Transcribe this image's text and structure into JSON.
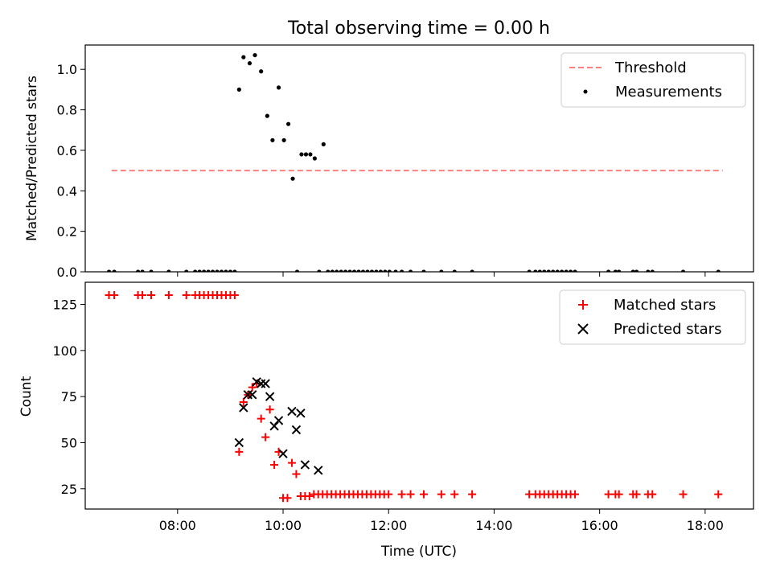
{
  "title": "Total observing time = 0.00 h",
  "colors": {
    "threshold": "#ff7f7f",
    "measurements": "#000000",
    "matched": "#ff0000",
    "predicted": "#000000"
  },
  "chart_data": [
    {
      "type": "scatter",
      "title": "Total observing time = 0.00 h",
      "xlabel": "",
      "ylabel": "Matched/Predicted stars",
      "xlim": [
        "06:15",
        "18:55"
      ],
      "ylim": [
        0,
        1.12
      ],
      "yticks": [
        0.0,
        0.2,
        0.4,
        0.6,
        0.8,
        1.0
      ],
      "ytick_labels": [
        "0.0",
        "0.2",
        "0.4",
        "0.6",
        "0.8",
        "1.0"
      ],
      "xticks": [
        "08:00",
        "10:00",
        "12:00",
        "14:00",
        "16:00",
        "18:00"
      ],
      "legend_position": "top-right",
      "legend": [
        "Threshold",
        "Measurements"
      ],
      "series": [
        {
          "name": "Threshold",
          "kind": "line",
          "x": [
            "06:45",
            "18:20"
          ],
          "y": [
            0.5,
            0.5
          ]
        },
        {
          "name": "Measurements",
          "kind": "points",
          "x": [
            "06:42",
            "06:48",
            "07:15",
            "07:20",
            "07:30",
            "07:50",
            "08:10",
            "08:20",
            "08:25",
            "08:30",
            "08:35",
            "08:40",
            "08:45",
            "08:50",
            "08:55",
            "09:00",
            "09:05",
            "09:10",
            "09:15",
            "09:22",
            "09:28",
            "09:35",
            "09:42",
            "09:48",
            "09:55",
            "10:01",
            "10:06",
            "10:11",
            "10:16",
            "10:21",
            "10:26",
            "10:31",
            "10:36",
            "10:41",
            "10:46",
            "10:51",
            "10:56",
            "11:01",
            "11:06",
            "11:11",
            "11:16",
            "11:21",
            "11:26",
            "11:31",
            "11:36",
            "11:41",
            "11:46",
            "11:51",
            "11:56",
            "12:01",
            "12:08",
            "12:15",
            "12:25",
            "12:40",
            "13:00",
            "13:15",
            "13:35",
            "14:40",
            "14:47",
            "14:52",
            "14:57",
            "15:02",
            "15:07",
            "15:12",
            "15:17",
            "15:22",
            "15:27",
            "15:32",
            "16:10",
            "16:18",
            "16:22",
            "16:38",
            "16:42",
            "16:55",
            "17:00",
            "17:35",
            "18:15"
          ],
          "y": [
            0,
            0,
            0,
            0,
            0,
            0,
            0,
            0,
            0,
            0,
            0,
            0,
            0,
            0,
            0,
            0,
            0,
            0.9,
            1.06,
            1.03,
            1.07,
            0.99,
            0.77,
            0.65,
            0.91,
            0.65,
            0.73,
            0.46,
            0,
            0.58,
            0.58,
            0.58,
            0.56,
            0,
            0.63,
            0,
            0,
            0,
            0,
            0,
            0,
            0,
            0,
            0,
            0,
            0,
            0,
            0,
            0,
            0,
            0,
            0,
            0,
            0,
            0,
            0,
            0,
            0,
            0,
            0,
            0,
            0,
            0,
            0,
            0,
            0,
            0,
            0,
            0,
            0,
            0,
            0,
            0,
            0,
            0,
            0,
            0
          ]
        }
      ]
    },
    {
      "type": "scatter",
      "xlabel": "Time (UTC)",
      "ylabel": "Count",
      "xlim": [
        "06:15",
        "18:55"
      ],
      "ylim": [
        14,
        137
      ],
      "yticks": [
        25,
        50,
        75,
        100,
        125
      ],
      "ytick_labels": [
        "25",
        "50",
        "75",
        "100",
        "125"
      ],
      "xticks": [
        "08:00",
        "10:00",
        "12:00",
        "14:00",
        "16:00",
        "18:00"
      ],
      "xtick_labels": [
        "08:00",
        "10:00",
        "12:00",
        "14:00",
        "16:00",
        "18:00"
      ],
      "legend_position": "top-right",
      "legend": [
        "Matched stars",
        "Predicted stars"
      ],
      "series": [
        {
          "name": "Matched stars",
          "marker": "plus",
          "x": [
            "06:42",
            "06:48",
            "07:15",
            "07:20",
            "07:30",
            "07:50",
            "08:10",
            "08:20",
            "08:25",
            "08:30",
            "08:35",
            "08:40",
            "08:45",
            "08:50",
            "08:55",
            "09:00",
            "09:05",
            "09:10",
            "09:15",
            "09:20",
            "09:25",
            "09:30",
            "09:35",
            "09:40",
            "09:45",
            "09:50",
            "09:55",
            "10:00",
            "10:05",
            "10:10",
            "10:15",
            "10:20",
            "10:25",
            "10:30",
            "10:35",
            "10:40",
            "10:45",
            "10:50",
            "10:55",
            "11:00",
            "11:05",
            "11:10",
            "11:15",
            "11:20",
            "11:25",
            "11:30",
            "11:35",
            "11:40",
            "11:45",
            "11:50",
            "11:55",
            "12:00",
            "12:15",
            "12:25",
            "12:40",
            "13:00",
            "13:15",
            "13:35",
            "14:40",
            "14:47",
            "14:52",
            "14:57",
            "15:02",
            "15:07",
            "15:12",
            "15:17",
            "15:22",
            "15:27",
            "15:32",
            "16:10",
            "16:18",
            "16:22",
            "16:38",
            "16:42",
            "16:55",
            "17:00",
            "17:35",
            "18:15"
          ],
          "y": [
            130,
            130,
            130,
            130,
            130,
            130,
            130,
            130,
            130,
            130,
            130,
            130,
            130,
            130,
            130,
            130,
            130,
            45,
            72,
            76,
            80,
            82,
            63,
            53,
            68,
            38,
            45,
            20,
            20,
            39,
            33,
            21,
            21,
            21,
            22,
            22,
            22,
            22,
            22,
            22,
            22,
            22,
            22,
            22,
            22,
            22,
            22,
            22,
            22,
            22,
            22,
            22,
            22,
            22,
            22,
            22,
            22,
            22,
            22,
            22,
            22,
            22,
            22,
            22,
            22,
            22,
            22,
            22,
            22,
            22,
            22,
            22,
            22,
            22,
            22,
            22,
            22,
            22
          ]
        },
        {
          "name": "Predicted stars",
          "marker": "x",
          "x": [
            "09:10",
            "09:15",
            "09:20",
            "09:25",
            "09:30",
            "09:35",
            "09:40",
            "09:45",
            "09:50",
            "09:55",
            "10:00",
            "10:10",
            "10:15",
            "10:20",
            "10:25",
            "10:40"
          ],
          "y": [
            50,
            69,
            76,
            76,
            83,
            82,
            82,
            75,
            59,
            62,
            44,
            67,
            57,
            66,
            38,
            35
          ]
        }
      ]
    }
  ]
}
